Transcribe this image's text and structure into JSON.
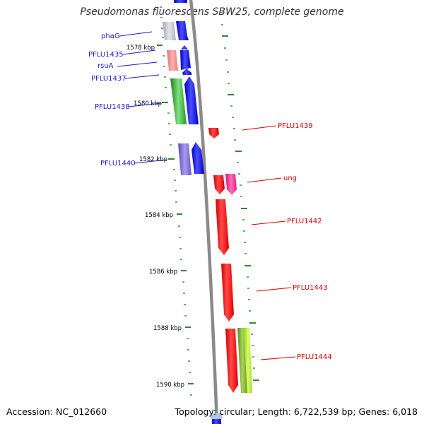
{
  "title": "Pseudomonas fluorescens SBW25, complete genome",
  "footer": {
    "accession": "Accession: NC_012660",
    "summary": "Topology: circular; Length: 6,722,539 bp; Genes: 6,018"
  },
  "colors": {
    "backbone": "#888888",
    "tick": "#2e8b2e",
    "forward_label": "#1a1acc",
    "reverse_label": "#d60000"
  },
  "kbp_ticks": [
    "1578 kbp",
    "1580 kbp",
    "1582 kbp",
    "1584 kbp",
    "1586 kbp",
    "1588 kbp",
    "1590 kbp"
  ],
  "genes_forward": [
    {
      "label": "phaG"
    },
    {
      "label": "PFLU1435"
    },
    {
      "label": "rsuA"
    },
    {
      "label": "PFLU1437"
    },
    {
      "label": "PFLU1438"
    },
    {
      "label": "PFLU1440"
    }
  ],
  "genes_reverse": [
    {
      "label": "PFLU1439"
    },
    {
      "label": "ung"
    },
    {
      "label": "PFLU1442"
    },
    {
      "label": "PFLU1443"
    },
    {
      "label": "PFLU1444"
    }
  ]
}
